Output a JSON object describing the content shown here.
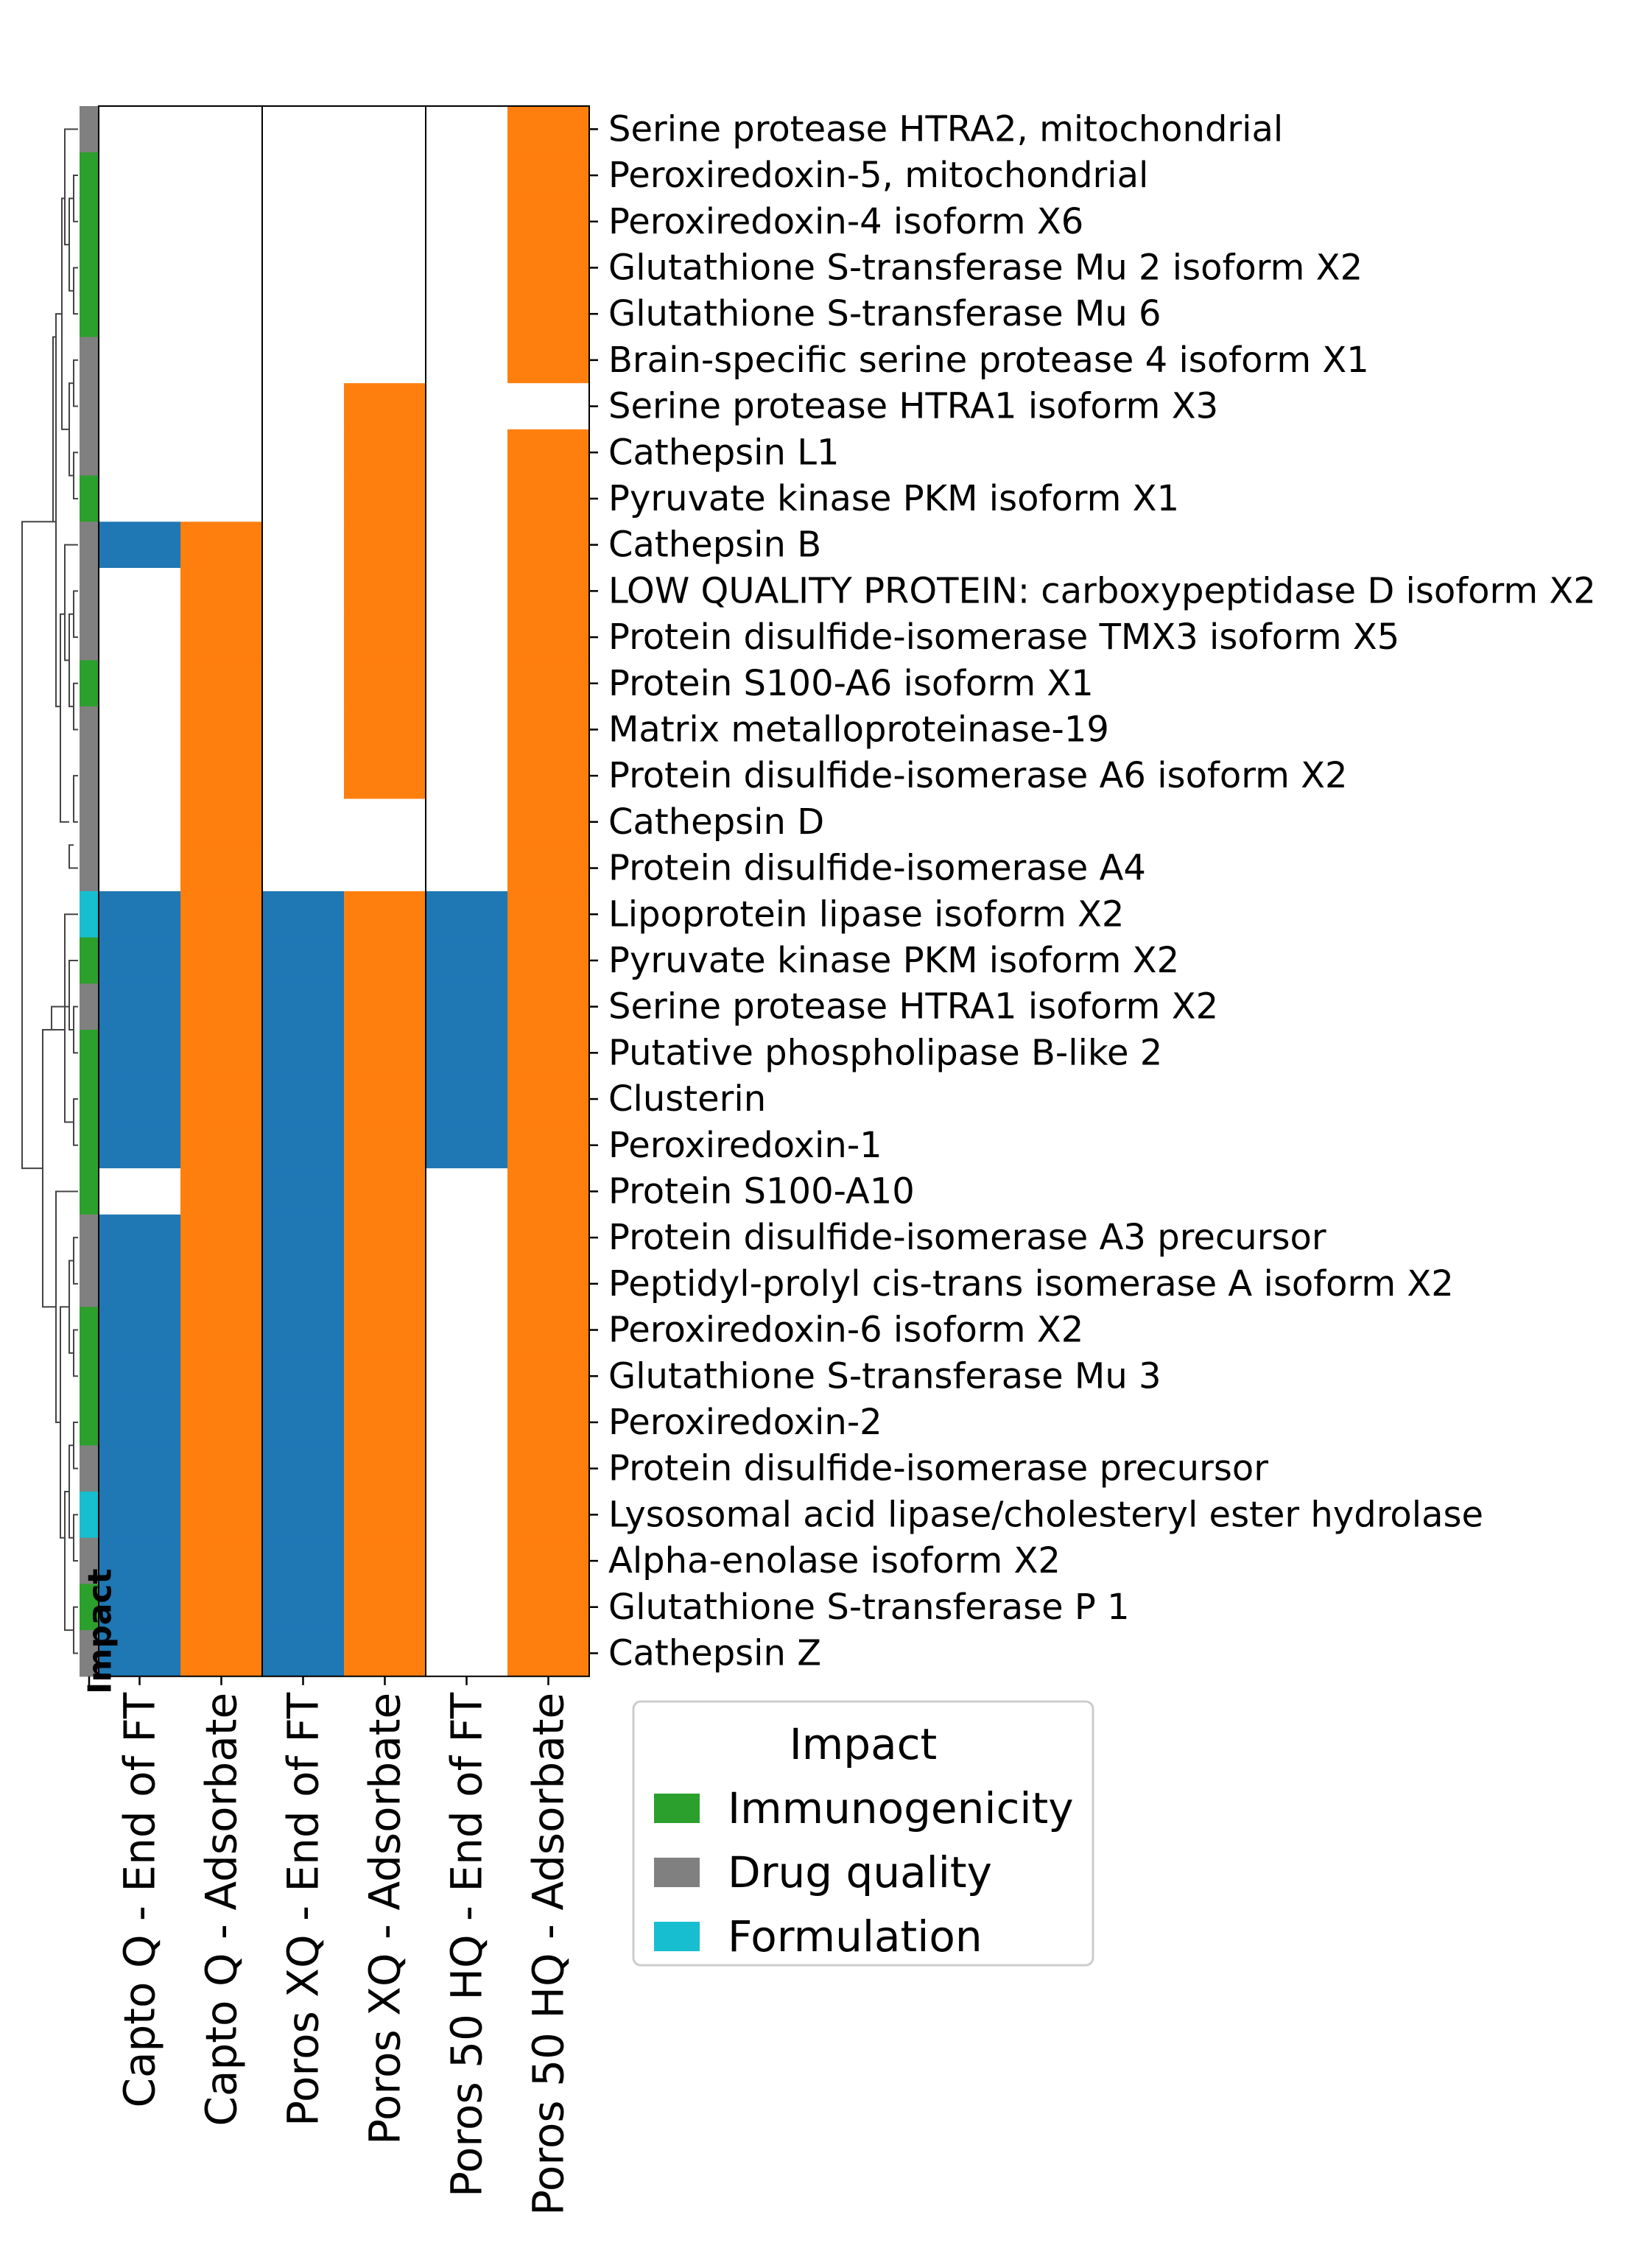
{
  "chart_data": {
    "type": "heatmap",
    "title": "",
    "impact_column_label": "Impact",
    "columns": [
      "Capto Q - End of FT",
      "Capto Q - Adsorbate",
      "Poros XQ - End of FT",
      "Poros XQ - Adsorbate",
      "Poros 50 HQ - End of FT",
      "Poros 50 HQ - Adsorbate"
    ],
    "rows": [
      {
        "label": "Serine protease HTRA2, mitochondrial",
        "impact": "Drug quality",
        "values": [
          0,
          0,
          0,
          0,
          0,
          1
        ]
      },
      {
        "label": "Peroxiredoxin-5, mitochondrial",
        "impact": "Immunogenicity",
        "values": [
          0,
          0,
          0,
          0,
          0,
          1
        ]
      },
      {
        "label": "Peroxiredoxin-4 isoform X6",
        "impact": "Immunogenicity",
        "values": [
          0,
          0,
          0,
          0,
          0,
          1
        ]
      },
      {
        "label": "Glutathione S-transferase Mu 2 isoform X2",
        "impact": "Immunogenicity",
        "values": [
          0,
          0,
          0,
          0,
          0,
          1
        ]
      },
      {
        "label": "Glutathione S-transferase Mu 6",
        "impact": "Immunogenicity",
        "values": [
          0,
          0,
          0,
          0,
          0,
          1
        ]
      },
      {
        "label": "Brain-specific serine protease 4 isoform X1",
        "impact": "Drug quality",
        "values": [
          0,
          0,
          0,
          0,
          0,
          1
        ]
      },
      {
        "label": "Serine protease HTRA1 isoform X3",
        "impact": "Drug quality",
        "values": [
          0,
          0,
          0,
          1,
          0,
          0
        ]
      },
      {
        "label": "Cathepsin L1",
        "impact": "Drug quality",
        "values": [
          0,
          0,
          0,
          1,
          0,
          1
        ]
      },
      {
        "label": "Pyruvate kinase PKM isoform X1",
        "impact": "Immunogenicity",
        "values": [
          0,
          0,
          0,
          1,
          0,
          1
        ]
      },
      {
        "label": "Cathepsin B",
        "impact": "Drug quality",
        "values": [
          1,
          1,
          0,
          1,
          0,
          1
        ]
      },
      {
        "label": "LOW QUALITY PROTEIN: carboxypeptidase D isoform X2",
        "impact": "Drug quality",
        "values": [
          0,
          1,
          0,
          1,
          0,
          1
        ]
      },
      {
        "label": "Protein disulfide-isomerase TMX3 isoform X5",
        "impact": "Drug quality",
        "values": [
          0,
          1,
          0,
          1,
          0,
          1
        ]
      },
      {
        "label": "Protein S100-A6 isoform X1",
        "impact": "Immunogenicity",
        "values": [
          0,
          1,
          0,
          1,
          0,
          1
        ]
      },
      {
        "label": "Matrix metalloproteinase-19",
        "impact": "Drug quality",
        "values": [
          0,
          1,
          0,
          1,
          0,
          1
        ]
      },
      {
        "label": "Protein disulfide-isomerase A6 isoform X2",
        "impact": "Drug quality",
        "values": [
          0,
          1,
          0,
          1,
          0,
          1
        ]
      },
      {
        "label": "Cathepsin D",
        "impact": "Drug quality",
        "values": [
          0,
          1,
          0,
          0,
          0,
          1
        ]
      },
      {
        "label": "Protein disulfide-isomerase A4",
        "impact": "Drug quality",
        "values": [
          0,
          1,
          0,
          0,
          0,
          1
        ]
      },
      {
        "label": "Lipoprotein lipase isoform X2",
        "impact": "Formulation",
        "values": [
          1,
          1,
          1,
          1,
          1,
          1
        ]
      },
      {
        "label": "Pyruvate kinase PKM isoform X2",
        "impact": "Immunogenicity",
        "values": [
          1,
          1,
          1,
          1,
          1,
          1
        ]
      },
      {
        "label": "Serine protease HTRA1 isoform X2",
        "impact": "Drug quality",
        "values": [
          1,
          1,
          1,
          1,
          1,
          1
        ]
      },
      {
        "label": "Putative phospholipase B-like 2",
        "impact": "Immunogenicity",
        "values": [
          1,
          1,
          1,
          1,
          1,
          1
        ]
      },
      {
        "label": "Clusterin",
        "impact": "Immunogenicity",
        "values": [
          1,
          1,
          1,
          1,
          1,
          1
        ]
      },
      {
        "label": "Peroxiredoxin-1",
        "impact": "Immunogenicity",
        "values": [
          1,
          1,
          1,
          1,
          1,
          1
        ]
      },
      {
        "label": "Protein S100-A10",
        "impact": "Immunogenicity",
        "values": [
          0,
          1,
          1,
          1,
          0,
          1
        ]
      },
      {
        "label": "Protein disulfide-isomerase A3 precursor",
        "impact": "Drug quality",
        "values": [
          1,
          1,
          1,
          1,
          0,
          1
        ]
      },
      {
        "label": "Peptidyl-prolyl cis-trans isomerase A isoform X2",
        "impact": "Drug quality",
        "values": [
          1,
          1,
          1,
          1,
          0,
          1
        ]
      },
      {
        "label": "Peroxiredoxin-6 isoform X2",
        "impact": "Immunogenicity",
        "values": [
          1,
          1,
          1,
          1,
          0,
          1
        ]
      },
      {
        "label": "Glutathione S-transferase Mu 3",
        "impact": "Immunogenicity",
        "values": [
          1,
          1,
          1,
          1,
          0,
          1
        ]
      },
      {
        "label": "Peroxiredoxin-2",
        "impact": "Immunogenicity",
        "values": [
          1,
          1,
          1,
          1,
          0,
          1
        ]
      },
      {
        "label": "Protein disulfide-isomerase precursor",
        "impact": "Drug quality",
        "values": [
          1,
          1,
          1,
          1,
          0,
          1
        ]
      },
      {
        "label": "Lysosomal acid lipase/cholesteryl ester hydrolase",
        "impact": "Formulation",
        "values": [
          1,
          1,
          1,
          1,
          0,
          1
        ]
      },
      {
        "label": "Alpha-enolase isoform X2",
        "impact": "Drug quality",
        "values": [
          1,
          1,
          1,
          1,
          0,
          1
        ]
      },
      {
        "label": "Glutathione S-transferase P 1",
        "impact": "Immunogenicity",
        "values": [
          1,
          1,
          1,
          1,
          0,
          1
        ]
      },
      {
        "label": "Cathepsin Z",
        "impact": "Drug quality",
        "values": [
          1,
          1,
          1,
          1,
          0,
          1
        ]
      }
    ],
    "legend": {
      "title": "Impact",
      "placement": "bottom-right",
      "entries": [
        {
          "label": "Immunogenicity",
          "color": "#2ca02c"
        },
        {
          "label": "Drug quality",
          "color": "#808080"
        },
        {
          "label": "Formulation",
          "color": "#17becf"
        }
      ]
    },
    "colors": {
      "end_of_ft_present": "#1f77b4",
      "adsorbate_present": "#ff7f0e",
      "absent": "#ffffff"
    },
    "row_dendrogram": true
  }
}
